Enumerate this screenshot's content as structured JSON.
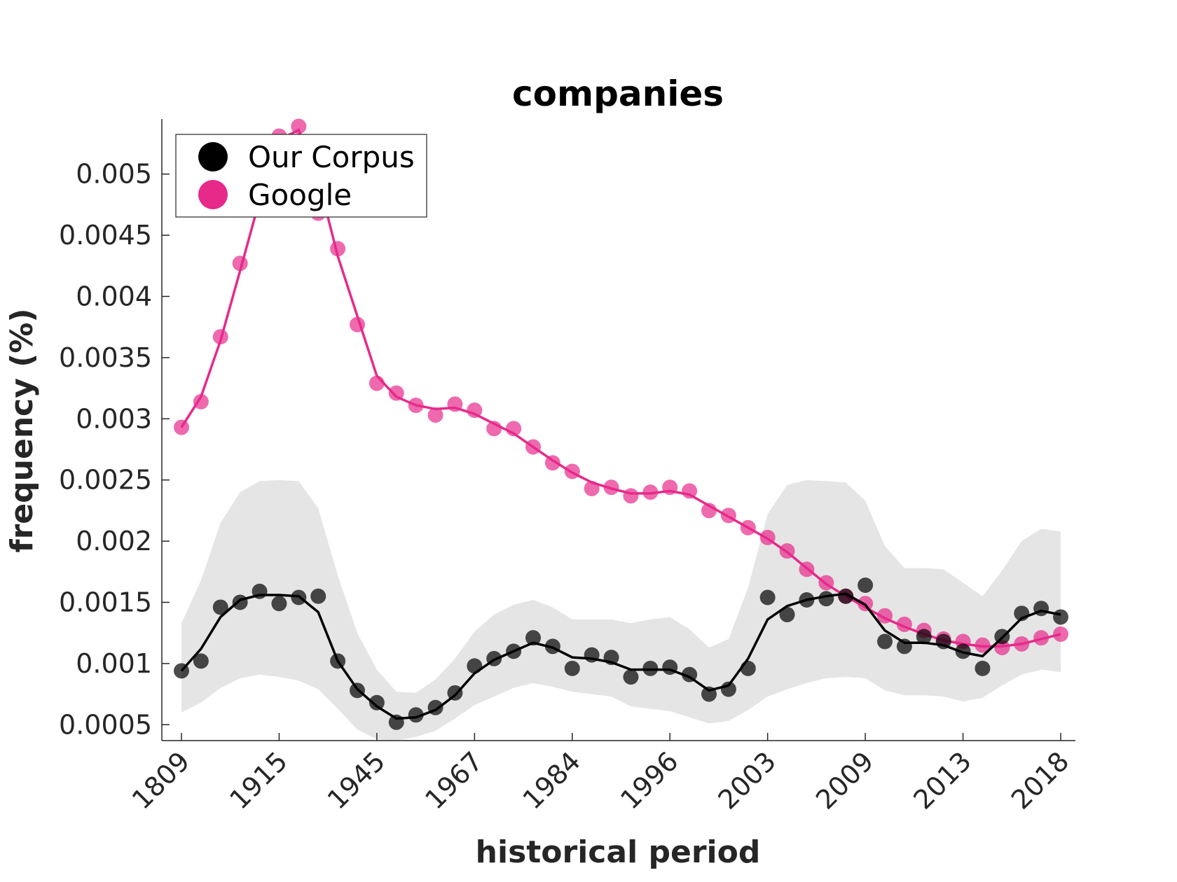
{
  "chart_data": {
    "type": "line",
    "title": "companies",
    "xlabel": "historical period",
    "ylabel": "frequency (%)",
    "ylim": [
      0.00037,
      0.00545
    ],
    "x_tick_labels": [
      "1809",
      "1915",
      "1945",
      "1967",
      "1984",
      "1996",
      "2003",
      "2009",
      "2013",
      "2018"
    ],
    "y_ticks": [
      0.0005,
      0.001,
      0.0015,
      0.002,
      0.0025,
      0.003,
      0.0035,
      0.004,
      0.0045,
      0.005
    ],
    "y_tick_labels": [
      "0.0005",
      "0.001",
      "0.0015",
      "0.002",
      "0.0025",
      "0.003",
      "0.0035",
      "0.004",
      "0.0045",
      "0.005"
    ],
    "grid": false,
    "legend_position": "top-left",
    "series": [
      {
        "name": "Our Corpus",
        "color": "#000000",
        "points": [
          0.00094,
          0.00102,
          0.00146,
          0.0015,
          0.00159,
          0.00149,
          0.00154,
          0.00155,
          0.00102,
          0.00078,
          0.00068,
          0.00052,
          0.00058,
          0.00064,
          0.00076,
          0.00098,
          0.00104,
          0.0011,
          0.00121,
          0.00114,
          0.00096,
          0.00107,
          0.00105,
          0.00089,
          0.00096,
          0.00097,
          0.00091,
          0.00075,
          0.00079,
          0.00096,
          0.00154,
          0.0014,
          0.00152,
          0.00153,
          0.00155,
          0.00164,
          0.00118,
          0.00114,
          0.00122,
          0.00118,
          0.0011,
          0.00096,
          0.00122,
          0.00141,
          0.00145,
          0.00138
        ],
        "smoothed": [
          0.00094,
          0.00112,
          0.00138,
          0.00152,
          0.00156,
          0.00156,
          0.00155,
          0.00142,
          0.00102,
          0.00079,
          0.00065,
          0.00055,
          0.00056,
          0.00062,
          0.00074,
          0.00092,
          0.00103,
          0.0011,
          0.00117,
          0.00113,
          0.00105,
          0.00104,
          0.00101,
          0.00095,
          0.00095,
          0.00095,
          0.00089,
          0.00078,
          0.00082,
          0.00104,
          0.00136,
          0.00147,
          0.00152,
          0.00155,
          0.00157,
          0.00148,
          0.00127,
          0.00117,
          0.00117,
          0.00115,
          0.00109,
          0.00106,
          0.00121,
          0.00137,
          0.00143,
          0.0014
        ],
        "band_upper": [
          0.00133,
          0.00168,
          0.00215,
          0.0024,
          0.00249,
          0.0025,
          0.00249,
          0.00227,
          0.00172,
          0.00125,
          0.00095,
          0.00077,
          0.00076,
          0.00087,
          0.00104,
          0.00126,
          0.0014,
          0.00148,
          0.00152,
          0.00146,
          0.00136,
          0.00136,
          0.00136,
          0.00133,
          0.00136,
          0.00138,
          0.00128,
          0.00113,
          0.0012,
          0.00162,
          0.00222,
          0.00246,
          0.0025,
          0.00249,
          0.00248,
          0.00233,
          0.00196,
          0.00178,
          0.00178,
          0.00177,
          0.00166,
          0.00155,
          0.00176,
          0.002,
          0.0021,
          0.00208
        ],
        "band_lower": [
          0.0006,
          0.00068,
          0.0008,
          0.00088,
          0.00091,
          0.00089,
          0.00086,
          0.00079,
          0.00063,
          0.00046,
          0.00038,
          0.00037,
          0.0004,
          0.00045,
          0.00055,
          0.00066,
          0.00073,
          0.0008,
          0.00084,
          0.00081,
          0.00077,
          0.00075,
          0.00073,
          0.00065,
          0.00063,
          0.00061,
          0.00056,
          0.00051,
          0.00053,
          0.00062,
          0.00073,
          0.00079,
          0.00084,
          0.00088,
          0.00089,
          0.00088,
          0.00078,
          0.00074,
          0.00074,
          0.00073,
          0.00069,
          0.00072,
          0.00082,
          0.00091,
          0.00095,
          0.00093
        ]
      },
      {
        "name": "Google",
        "color": "#e7298a",
        "points": [
          0.00293,
          0.00314,
          0.00367,
          0.00427,
          0.00488,
          0.00531,
          0.00539,
          0.00468,
          0.00439,
          0.00377,
          0.00329,
          0.00321,
          0.00311,
          0.00303,
          0.00312,
          0.00307,
          0.00292,
          0.00292,
          0.00277,
          0.00264,
          0.00257,
          0.00243,
          0.00244,
          0.00237,
          0.0024,
          0.00244,
          0.00241,
          0.00225,
          0.00221,
          0.00211,
          0.00203,
          0.00192,
          0.00177,
          0.00166,
          0.00155,
          0.00149,
          0.00139,
          0.00132,
          0.00127,
          0.0012,
          0.00118,
          0.00115,
          0.00113,
          0.00116,
          0.00121,
          0.00124
        ],
        "smoothed": [
          0.00293,
          0.00318,
          0.00364,
          0.00421,
          0.00479,
          0.00528,
          0.00536,
          0.00496,
          0.00433,
          0.00384,
          0.00335,
          0.00318,
          0.00311,
          0.00308,
          0.00309,
          0.00304,
          0.00296,
          0.00288,
          0.00277,
          0.00266,
          0.00256,
          0.00248,
          0.00243,
          0.00239,
          0.00239,
          0.00241,
          0.00238,
          0.00229,
          0.0022,
          0.00211,
          0.00202,
          0.00191,
          0.00178,
          0.00165,
          0.00155,
          0.00146,
          0.00137,
          0.0013,
          0.00124,
          0.00119,
          0.00116,
          0.00114,
          0.00114,
          0.00116,
          0.0012,
          0.00124
        ]
      }
    ]
  }
}
